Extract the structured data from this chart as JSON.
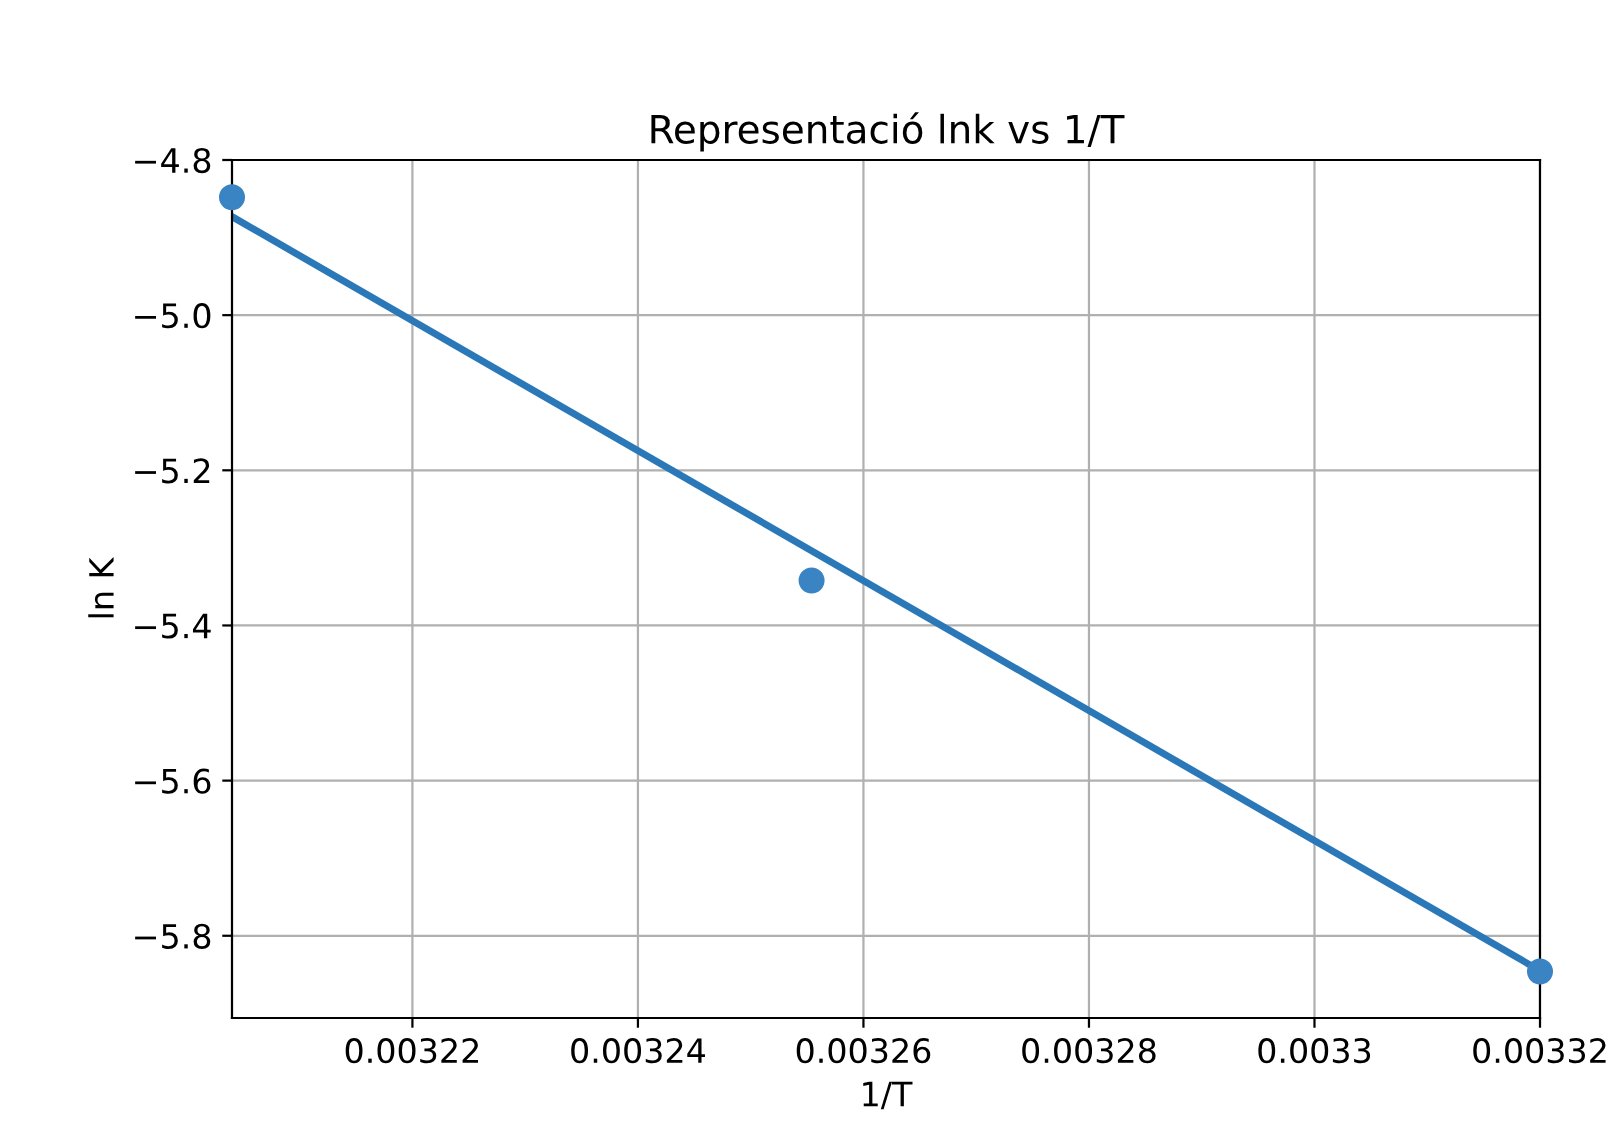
{
  "chart_data": {
    "type": "scatter",
    "title": "Representació lnk vs 1/T",
    "xlabel": "1/T",
    "ylabel": "ln K",
    "series": [
      {
        "color": "#3a84c4",
        "marker": "circle",
        "x": [
          0.003204,
          0.0032554,
          0.00332
        ],
        "values": [
          -4.848,
          -5.342,
          -5.846
        ]
      },
      {
        "type": "line",
        "color": "#2a78b8",
        "marker": "none",
        "x": [
          0.003204,
          0.00332
        ],
        "values": [
          -4.873,
          -5.845
        ]
      }
    ],
    "xlim": [
      0.003204,
      0.00332
    ],
    "ylim": [
      -5.906,
      -4.8
    ],
    "xticks": [
      0.00322,
      0.00324,
      0.00326,
      0.00328,
      0.0033,
      0.00332
    ],
    "yticks": [
      {
        "value": -4.8,
        "label": "−4.8"
      },
      {
        "value": -5.0,
        "label": "−5.0"
      },
      {
        "value": -5.2,
        "label": "−5.2"
      },
      {
        "value": -5.4,
        "label": "−5.4"
      },
      {
        "value": -5.6,
        "label": "−5.6"
      },
      {
        "value": -5.8,
        "label": "−5.8"
      }
    ],
    "grid": true
  }
}
